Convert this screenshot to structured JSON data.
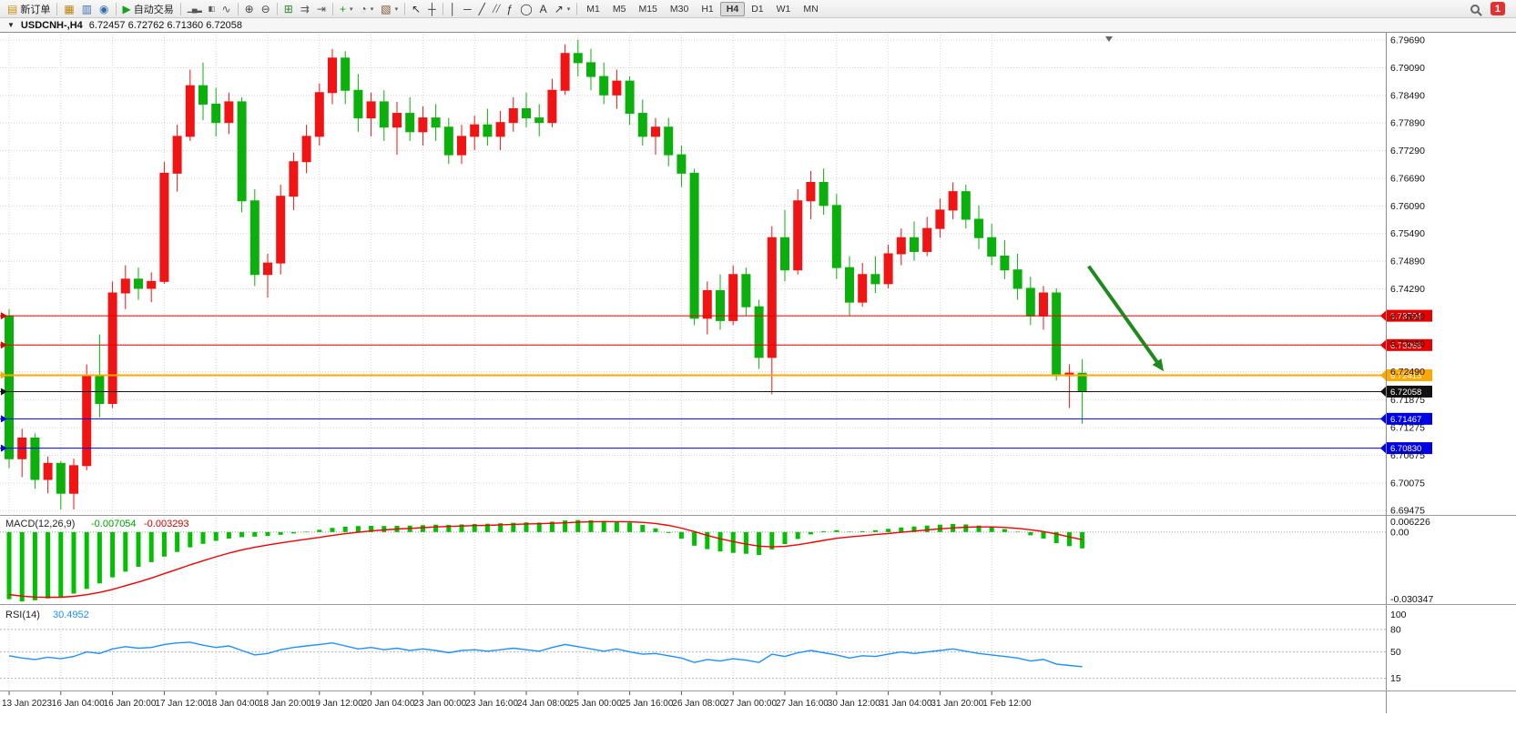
{
  "toolbar": {
    "caret_glyph": "▾",
    "collapse_glyph": "▼",
    "notification_count": "1",
    "groups": [
      {
        "buttons": [
          {
            "name": "new-order-button",
            "icon_glyph": "▤",
            "icon_color": "#c99612",
            "label": "新订单"
          }
        ]
      },
      {
        "buttons": [
          {
            "name": "new-chart-button",
            "icon_glyph": "▦",
            "icon_color": "#b8860b"
          },
          {
            "name": "profiles-button",
            "icon_glyph": "▥",
            "icon_color": "#3f6fb0"
          },
          {
            "name": "refresh-button",
            "icon_glyph": "◉",
            "icon_color": "#2f6db0"
          }
        ]
      },
      {
        "buttons": [
          {
            "name": "autotrading-button",
            "icon_glyph": "▶",
            "icon_color": "#18a018",
            "label": "自动交易"
          }
        ]
      },
      {
        "buttons": [
          {
            "name": "bar-chart-button",
            "icon_glyph": "▁▄▂",
            "icon_color": "#555555",
            "small": true
          },
          {
            "name": "candlestick-chart-button",
            "icon_glyph": "▮▯",
            "icon_color": "#555555",
            "small": true
          },
          {
            "name": "line-chart-button",
            "icon_glyph": "∿",
            "icon_color": "#555555"
          }
        ]
      },
      {
        "buttons": [
          {
            "name": "zoom-in-button",
            "icon_glyph": "⊕",
            "icon_color": "#444444"
          },
          {
            "name": "zoom-out-button",
            "icon_glyph": "⊖",
            "icon_color": "#444444"
          }
        ]
      },
      {
        "buttons": [
          {
            "name": "tile-windows-button",
            "icon_glyph": "⊞",
            "icon_color": "#2e8b2e"
          },
          {
            "name": "auto-scroll-button",
            "icon_glyph": "⇉",
            "icon_color": "#555555"
          },
          {
            "name": "chart-shift-button",
            "icon_glyph": "⇥",
            "icon_color": "#555555"
          }
        ]
      },
      {
        "buttons": [
          {
            "name": "indicators-button",
            "icon_glyph": "+",
            "icon_color": "#18a018",
            "caret": true
          },
          {
            "name": "periods-button",
            "icon_glyph": "◔",
            "icon_color": "#555555",
            "caret": true
          },
          {
            "name": "templates-button",
            "icon_glyph": "▧",
            "icon_color": "#7a5230",
            "caret": true
          }
        ]
      },
      {
        "buttons": [
          {
            "name": "cursor-button",
            "icon_glyph": "↖",
            "icon_color": "#333333"
          },
          {
            "name": "crosshair-button",
            "icon_glyph": "┼",
            "icon_color": "#333333"
          }
        ]
      },
      {
        "buttons": [
          {
            "name": "vertical-line-button",
            "icon_glyph": "│",
            "icon_color": "#333333"
          },
          {
            "name": "horizontal-line-button",
            "icon_glyph": "─",
            "icon_color": "#333333"
          },
          {
            "name": "trendline-button",
            "icon_glyph": "╱",
            "icon_color": "#333333"
          },
          {
            "name": "channel-button",
            "icon_glyph": "╱╱",
            "icon_color": "#333333",
            "small": true
          },
          {
            "name": "fibonacci-button",
            "icon_glyph": "ƒ",
            "icon_color": "#333333"
          },
          {
            "name": "shapes-button",
            "icon_glyph": "◯",
            "icon_color": "#333333"
          },
          {
            "name": "text-button",
            "icon_glyph": "A",
            "icon_color": "#333333"
          },
          {
            "name": "arrows-button",
            "icon_glyph": "↗",
            "icon_color": "#333333",
            "caret": true
          }
        ]
      }
    ],
    "timeframes": [
      "M1",
      "M5",
      "M15",
      "M30",
      "H1",
      "H4",
      "D1",
      "W1",
      "MN"
    ],
    "active_timeframe": "H4"
  },
  "chart": {
    "symbol_period": "USDCNH-,H4",
    "ohlc_text": "6.72457 6.72762 6.71360 6.72058"
  },
  "price_axis": {
    "labels": [
      {
        "v": 6.7969,
        "t": "6.79690"
      },
      {
        "v": 6.7909,
        "t": "6.79090"
      },
      {
        "v": 6.7849,
        "t": "6.78490"
      },
      {
        "v": 6.7789,
        "t": "6.77890"
      },
      {
        "v": 6.7729,
        "t": "6.77290"
      },
      {
        "v": 6.7669,
        "t": "6.76690"
      },
      {
        "v": 6.7609,
        "t": "6.76090"
      },
      {
        "v": 6.7549,
        "t": "6.75490"
      },
      {
        "v": 6.7489,
        "t": "6.74890"
      },
      {
        "v": 6.7429,
        "t": "6.74290"
      },
      {
        "v": 6.7369,
        "t": "6.73690"
      },
      {
        "v": 6.7309,
        "t": "6.73090"
      },
      {
        "v": 6.7249,
        "t": "6.72490"
      },
      {
        "v": 6.71875,
        "t": "6.71875"
      },
      {
        "v": 6.71275,
        "t": "6.71275"
      },
      {
        "v": 6.70675,
        "t": "6.70675"
      },
      {
        "v": 6.70075,
        "t": "6.70075"
      },
      {
        "v": 6.69475,
        "t": "6.69475"
      }
    ]
  },
  "time_axis": {
    "labels": [
      "13 Jan 2023",
      "16 Jan 04:00",
      "16 Jan 20:00",
      "17 Jan 12:00",
      "18 Jan 04:00",
      "18 Jan 20:00",
      "19 Jan 12:00",
      "20 Jan 04:00",
      "23 Jan 00:00",
      "23 Jan 16:00",
      "24 Jan 08:00",
      "25 Jan 00:00",
      "25 Jan 16:00",
      "26 Jan 08:00",
      "27 Jan 00:00",
      "27 Jan 16:00",
      "30 Jan 12:00",
      "31 Jan 04:00",
      "31 Jan 20:00",
      "1 Feb 12:00"
    ]
  },
  "levels": [
    {
      "price": 6.73704,
      "label": "6.73704",
      "color": "#e80000",
      "width": 1
    },
    {
      "price": 6.73068,
      "label": "6.73068",
      "color": "#e80000",
      "width": 1
    },
    {
      "price": 6.72413,
      "label": "6.72413",
      "color": "#ffa800",
      "width": 2
    },
    {
      "price": 6.72058,
      "label": "6.72058",
      "color": "#111111",
      "width": 1,
      "current": true
    },
    {
      "price": 6.71467,
      "label": "6.71467",
      "color": "#0000e8",
      "width": 1
    },
    {
      "price": 6.7083,
      "label": "6.70830",
      "color": "#0000e8",
      "width": 1
    }
  ],
  "indicators": {
    "macd": {
      "name": "MACD(12,26,9)",
      "value_main": "-0.007054",
      "value_signal": "-0.003293",
      "axis": [
        {
          "v": 0.006226,
          "t": "0.006226"
        },
        {
          "v": 0,
          "t": "0.00"
        },
        {
          "v": -0.030347,
          "t": "-0.030347"
        }
      ]
    },
    "rsi": {
      "name": "RSI(14)",
      "value": "30.4952",
      "axis": [
        {
          "v": 100,
          "t": "100"
        },
        {
          "v": 80,
          "t": "80"
        },
        {
          "v": 50,
          "t": "50"
        },
        {
          "v": 15,
          "t": "15"
        }
      ],
      "levels": [
        80,
        50,
        15
      ]
    }
  },
  "chart_data": {
    "type": "candlestick",
    "symbol": "USDCNH",
    "period": "H4",
    "ylim": [
      6.694,
      6.7981
    ],
    "macd_range": [
      -0.030347,
      0.006226
    ],
    "rsi_range": [
      0,
      110
    ],
    "up_color": "#f01414",
    "down_color": "#0cb00c",
    "macd_color": "#00c000",
    "signal_color": "#f00000",
    "rsi_color": "#1e90ff",
    "ohlc": [
      [
        6.737,
        6.7385,
        6.704,
        6.706
      ],
      [
        6.706,
        6.7125,
        6.702,
        6.7105
      ],
      [
        6.7105,
        6.7115,
        6.6995,
        6.7015
      ],
      [
        6.7015,
        6.7065,
        6.6985,
        6.705
      ],
      [
        6.705,
        6.7055,
        6.695,
        6.6985
      ],
      [
        6.6985,
        6.706,
        6.695,
        6.7045
      ],
      [
        6.7045,
        6.7265,
        6.7035,
        6.724
      ],
      [
        6.724,
        6.733,
        6.715,
        6.718
      ],
      [
        6.718,
        6.7445,
        6.717,
        6.742
      ],
      [
        6.742,
        6.748,
        6.7385,
        6.745
      ],
      [
        6.745,
        6.7475,
        6.7405,
        6.743
      ],
      [
        6.743,
        6.7465,
        6.74,
        6.7445
      ],
      [
        6.7445,
        6.7705,
        6.744,
        6.768
      ],
      [
        6.768,
        6.7785,
        6.764,
        6.776
      ],
      [
        6.776,
        6.7905,
        6.775,
        6.787
      ],
      [
        6.787,
        6.792,
        6.7795,
        6.783
      ],
      [
        6.783,
        6.7865,
        6.776,
        6.779
      ],
      [
        6.779,
        6.7855,
        6.7765,
        6.7835
      ],
      [
        6.7835,
        6.7845,
        6.7595,
        6.762
      ],
      [
        6.762,
        6.7645,
        6.7435,
        6.746
      ],
      [
        6.746,
        6.7505,
        6.741,
        6.7485
      ],
      [
        6.7485,
        6.7655,
        6.746,
        6.763
      ],
      [
        6.763,
        6.7725,
        6.76,
        6.7705
      ],
      [
        6.7705,
        6.7785,
        6.768,
        6.776
      ],
      [
        6.776,
        6.7875,
        6.774,
        6.7855
      ],
      [
        6.7855,
        6.795,
        6.783,
        6.793
      ],
      [
        6.793,
        6.7945,
        6.783,
        6.786
      ],
      [
        6.786,
        6.7895,
        6.777,
        6.78
      ],
      [
        6.78,
        6.7855,
        6.776,
        6.7835
      ],
      [
        6.7835,
        6.786,
        6.775,
        6.778
      ],
      [
        6.778,
        6.7835,
        6.772,
        6.781
      ],
      [
        6.781,
        6.7845,
        6.775,
        6.777
      ],
      [
        6.777,
        6.7825,
        6.774,
        6.78
      ],
      [
        6.78,
        6.783,
        6.775,
        6.778
      ],
      [
        6.778,
        6.78,
        6.77,
        6.772
      ],
      [
        6.772,
        6.7785,
        6.77,
        6.776
      ],
      [
        6.776,
        6.7805,
        6.773,
        6.7785
      ],
      [
        6.7785,
        6.782,
        6.774,
        6.776
      ],
      [
        6.776,
        6.7815,
        6.773,
        6.779
      ],
      [
        6.779,
        6.7845,
        6.777,
        6.782
      ],
      [
        6.782,
        6.7855,
        6.778,
        6.78
      ],
      [
        6.78,
        6.783,
        6.776,
        6.779
      ],
      [
        6.779,
        6.7885,
        6.778,
        6.786
      ],
      [
        6.786,
        6.796,
        6.785,
        6.794
      ],
      [
        6.794,
        6.797,
        6.789,
        6.792
      ],
      [
        6.792,
        6.795,
        6.786,
        6.789
      ],
      [
        6.789,
        6.792,
        6.783,
        6.785
      ],
      [
        6.785,
        6.7905,
        6.782,
        6.788
      ],
      [
        6.788,
        6.789,
        6.7785,
        6.781
      ],
      [
        6.781,
        6.784,
        6.774,
        6.776
      ],
      [
        6.776,
        6.78,
        6.772,
        6.778
      ],
      [
        6.778,
        6.78,
        6.7695,
        6.772
      ],
      [
        6.772,
        6.774,
        6.765,
        6.768
      ],
      [
        6.768,
        6.769,
        6.735,
        6.7365
      ],
      [
        6.7365,
        6.7445,
        6.733,
        6.7425
      ],
      [
        6.7425,
        6.746,
        6.734,
        6.736
      ],
      [
        6.736,
        6.748,
        6.735,
        6.746
      ],
      [
        6.746,
        6.7475,
        6.737,
        6.739
      ],
      [
        6.739,
        6.7405,
        6.7255,
        6.728
      ],
      [
        6.728,
        6.7565,
        6.72,
        6.754
      ],
      [
        6.754,
        6.76,
        6.7445,
        6.747
      ],
      [
        6.747,
        6.7645,
        6.746,
        6.762
      ],
      [
        6.762,
        6.7685,
        6.758,
        6.766
      ],
      [
        6.766,
        6.769,
        6.759,
        6.761
      ],
      [
        6.761,
        6.7635,
        6.745,
        6.7475
      ],
      [
        6.7475,
        6.75,
        6.737,
        6.74
      ],
      [
        6.74,
        6.7485,
        6.739,
        6.746
      ],
      [
        6.746,
        6.75,
        6.742,
        6.744
      ],
      [
        6.744,
        6.7525,
        6.743,
        6.7505
      ],
      [
        6.7505,
        6.756,
        6.748,
        6.754
      ],
      [
        6.754,
        6.7575,
        6.749,
        6.751
      ],
      [
        6.751,
        6.7585,
        6.75,
        6.756
      ],
      [
        6.756,
        6.7625,
        6.754,
        6.76
      ],
      [
        6.76,
        6.766,
        6.758,
        6.764
      ],
      [
        6.764,
        6.7655,
        6.756,
        6.758
      ],
      [
        6.758,
        6.761,
        6.7515,
        6.754
      ],
      [
        6.754,
        6.757,
        6.748,
        6.75
      ],
      [
        6.75,
        6.7535,
        6.745,
        6.747
      ],
      [
        6.747,
        6.7505,
        6.7405,
        6.743
      ],
      [
        6.743,
        6.7455,
        6.735,
        6.737
      ],
      [
        6.737,
        6.7435,
        6.734,
        6.742
      ],
      [
        6.742,
        6.743,
        6.723,
        6.724
      ],
      [
        6.724,
        6.7265,
        6.717,
        6.7246
      ],
      [
        6.72457,
        6.72762,
        6.7136,
        6.72058
      ]
    ],
    "macd_histogram": [
      -0.029,
      -0.03,
      -0.0295,
      -0.0287,
      -0.028,
      -0.0266,
      -0.0246,
      -0.0222,
      -0.0196,
      -0.0171,
      -0.015,
      -0.013,
      -0.0106,
      -0.0086,
      -0.0066,
      -0.0051,
      -0.0038,
      -0.0028,
      -0.0022,
      -0.002,
      -0.0017,
      -0.0012,
      -0.0006,
      0.0002,
      0.001,
      0.0018,
      0.0023,
      0.0026,
      0.0027,
      0.0026,
      0.0027,
      0.0028,
      0.003,
      0.0032,
      0.0031,
      0.0033,
      0.0035,
      0.0036,
      0.0038,
      0.004,
      0.0042,
      0.0041,
      0.0045,
      0.005,
      0.0052,
      0.0051,
      0.0048,
      0.0046,
      0.0041,
      0.0031,
      0.0016,
      -0.0004,
      -0.0029,
      -0.0059,
      -0.0074,
      -0.0084,
      -0.009,
      -0.0094,
      -0.0099,
      -0.0075,
      -0.0052,
      -0.003,
      -0.001,
      0.0004,
      0.0008,
      0.0002,
      0.0004,
      0.0008,
      0.0014,
      0.002,
      0.0024,
      0.0028,
      0.0032,
      0.0035,
      0.0033,
      0.0028,
      0.0021,
      0.0013,
      0.0002,
      -0.0014,
      -0.0028,
      -0.0048,
      -0.0061,
      -0.007054
    ],
    "macd_signal": [
      -0.027,
      -0.0277,
      -0.0281,
      -0.0282,
      -0.0282,
      -0.0278,
      -0.0271,
      -0.0261,
      -0.0248,
      -0.0232,
      -0.0216,
      -0.0199,
      -0.018,
      -0.0161,
      -0.0142,
      -0.0124,
      -0.0107,
      -0.0091,
      -0.0077,
      -0.0066,
      -0.0056,
      -0.0047,
      -0.0039,
      -0.0031,
      -0.0023,
      -0.0015,
      -0.0007,
      -0.0001,
      0.0005,
      0.0009,
      0.0013,
      0.0016,
      0.0019,
      0.0022,
      0.0024,
      0.0026,
      0.0028,
      0.0029,
      0.0031,
      0.0033,
      0.0035,
      0.0036,
      0.0038,
      0.004,
      0.0043,
      0.0044,
      0.0045,
      0.0045,
      0.0044,
      0.0042,
      0.0037,
      0.0029,
      0.0017,
      0.0002,
      -0.0015,
      -0.0029,
      -0.0041,
      -0.0052,
      -0.0061,
      -0.0064,
      -0.0062,
      -0.0055,
      -0.0046,
      -0.0036,
      -0.0027,
      -0.0021,
      -0.0016,
      -0.0011,
      -0.0006,
      -0.0001,
      0.0004,
      0.0009,
      0.0014,
      0.0018,
      0.0021,
      0.0022,
      0.0022,
      0.002,
      0.0016,
      0.001,
      0.0002,
      -0.0008,
      -0.0021,
      -0.003293
    ],
    "rsi": [
      45,
      42,
      40,
      43,
      41,
      44,
      50,
      48,
      54,
      57,
      55,
      56,
      60,
      62,
      63,
      59,
      56,
      58,
      52,
      46,
      48,
      53,
      56,
      58,
      60,
      62,
      58,
      54,
      56,
      53,
      55,
      52,
      54,
      52,
      49,
      52,
      53,
      51,
      53,
      55,
      53,
      51,
      56,
      60,
      57,
      54,
      51,
      54,
      50,
      47,
      48,
      45,
      42,
      36,
      40,
      38,
      41,
      39,
      36,
      47,
      44,
      49,
      52,
      49,
      46,
      42,
      45,
      44,
      47,
      50,
      48,
      50,
      52,
      54,
      51,
      48,
      46,
      44,
      42,
      38,
      40,
      34,
      32,
      30.4952
    ],
    "annotations": [
      {
        "type": "arrow",
        "color": "#1e8a1e",
        "from_bar": 83.5,
        "from_price": 6.7478,
        "to_bar": 89.3,
        "to_price": 6.725
      }
    ]
  }
}
